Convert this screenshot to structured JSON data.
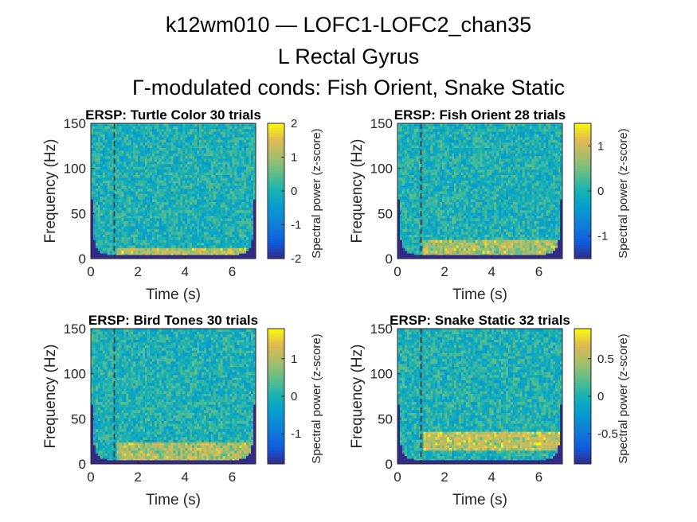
{
  "figure": {
    "title_lines": [
      "k12wm010 — LOFC1-LOFC2_chan35",
      "L Rectal Gyrus",
      "Γ-modulated conds: Fish Orient, Snake Static"
    ]
  },
  "chart_data": [
    {
      "type": "heatmap",
      "title": "ERSP: Turtle Color 30 trials",
      "xlabel": "Time (s)",
      "ylabel": "Frequency (Hz)",
      "xlim": [
        0,
        7
      ],
      "ylim": [
        0,
        150
      ],
      "xticks": [
        0,
        2,
        4,
        6
      ],
      "yticks": [
        0,
        50,
        100,
        150
      ],
      "event_line_x": 1,
      "colorbar": {
        "label": "Spectral power (z-score)",
        "lim": [
          -2,
          2
        ],
        "ticks": [
          -2,
          -1,
          0,
          1,
          2
        ],
        "tick_labels": [
          "-2",
          "-1",
          "0",
          "1",
          "2"
        ]
      },
      "colormap": "parula",
      "low_freq_band_peak": {
        "freq_range": [
          4,
          12
        ],
        "z": 1.5
      }
    },
    {
      "type": "heatmap",
      "title": "ERSP: Fish Orient 28 trials",
      "xlabel": "Time (s)",
      "ylabel": "Frequency (Hz)",
      "xlim": [
        0,
        7
      ],
      "ylim": [
        0,
        150
      ],
      "xticks": [
        0,
        2,
        4,
        6
      ],
      "yticks": [
        0,
        50,
        100,
        150
      ],
      "event_line_x": 1,
      "colorbar": {
        "label": "Spectral power (z-score)",
        "lim": [
          -1.5,
          1.5
        ],
        "ticks": [
          -1,
          0,
          1
        ],
        "tick_labels": [
          "-1",
          "0",
          "1"
        ]
      },
      "colormap": "parula",
      "low_freq_band_peak": {
        "freq_range": [
          4,
          20
        ],
        "z": 1.0
      }
    },
    {
      "type": "heatmap",
      "title": "ERSP: Bird Tones 30 trials",
      "xlabel": "Time (s)",
      "ylabel": "Frequency (Hz)",
      "xlim": [
        0,
        7
      ],
      "ylim": [
        0,
        150
      ],
      "xticks": [
        0,
        2,
        4,
        6
      ],
      "yticks": [
        0,
        50,
        100,
        150
      ],
      "event_line_x": 1,
      "colorbar": {
        "label": "Spectral power (z-score)",
        "lim": [
          -1.8,
          1.8
        ],
        "ticks": [
          -1,
          0,
          1
        ],
        "tick_labels": [
          "-1",
          "0",
          "1"
        ]
      },
      "colormap": "parula",
      "low_freq_band_peak": {
        "freq_range": [
          4,
          25
        ],
        "z": 1.2
      }
    },
    {
      "type": "heatmap",
      "title": "ERSP: Snake Static 32 trials",
      "xlabel": "Time (s)",
      "ylabel": "Frequency (Hz)",
      "xlim": [
        0,
        7
      ],
      "ylim": [
        0,
        150
      ],
      "xticks": [
        0,
        2,
        4,
        6
      ],
      "yticks": [
        0,
        50,
        100,
        150
      ],
      "event_line_x": 1,
      "colorbar": {
        "label": "Spectral power (z-score)",
        "lim": [
          -0.9,
          0.9
        ],
        "ticks": [
          -0.5,
          0,
          0.5
        ],
        "tick_labels": [
          "-0.5",
          "0",
          "0.5"
        ]
      },
      "colormap": "parula",
      "low_freq_band_peak": {
        "freq_range": [
          15,
          35
        ],
        "z": 0.7
      }
    }
  ]
}
